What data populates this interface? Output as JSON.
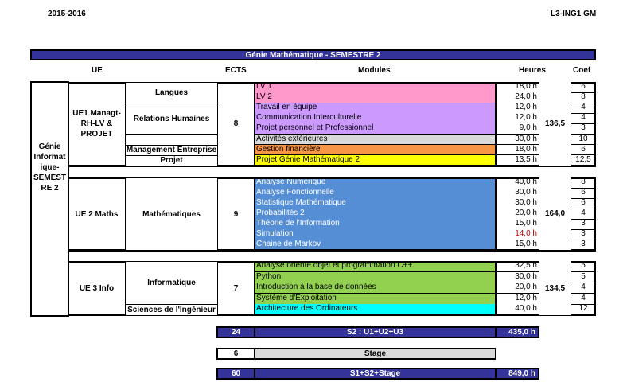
{
  "header": {
    "year": "2015-2016",
    "class": "L3-ING1 GM",
    "title": "Génie Mathématique - SEMESTRE 2"
  },
  "columns": {
    "ue": "UE",
    "ects": "ECTS",
    "modules": "Modules",
    "heures": "Heures",
    "coef": "Coef"
  },
  "program": "Génie Informat ique- SEMEST RE 2",
  "colors": {
    "pink": "#ff99cc",
    "lavender": "#cc99ff",
    "gray": "#d9d9d9",
    "orange": "#f79646",
    "yellow": "#ffff00",
    "blue": "#558ed5",
    "green": "#92d050",
    "cyan": "#00ffff",
    "navy": "#333399"
  },
  "sections": [
    {
      "ue": "UE1 Managt-RH-LV & PROJET",
      "ects": "8",
      "total": "136,5",
      "groups": [
        {
          "label": "Langues",
          "rows": 2
        },
        {
          "label": "Relations Humaines",
          "rows": 3
        },
        {
          "label": "",
          "rows": 1
        },
        {
          "label": "Management Entreprise",
          "rows": 1
        },
        {
          "label": "Projet",
          "rows": 1
        }
      ],
      "modules": [
        {
          "name": "LV 1",
          "hours": "18,0 h",
          "coef": "6",
          "color": "pink"
        },
        {
          "name": "LV 2",
          "hours": "24,0 h",
          "coef": "8",
          "color": "pink"
        },
        {
          "name": "Travail en équipe",
          "hours": "12,0 h",
          "coef": "4",
          "color": "lavender"
        },
        {
          "name": "Communication Interculturelle",
          "hours": "12,0 h",
          "coef": "4",
          "color": "lavender"
        },
        {
          "name": "Projet personnel et Professionnel",
          "hours": "9,0 h",
          "coef": "3",
          "color": "lavender"
        },
        {
          "name": "Activités extérieures",
          "hours": "30,0 h",
          "coef": "10",
          "color": "gray"
        },
        {
          "name": "Gestion financière",
          "hours": "18,0 h",
          "coef": "6",
          "color": "orange"
        },
        {
          "name": "Projet Génie Mathématique 2",
          "hours": "13,5 h",
          "coef": "12,5",
          "color": "yellow"
        }
      ]
    },
    {
      "ue": "UE 2 Maths",
      "ects": "9",
      "total": "164,0",
      "groups": [
        {
          "label": "Mathématiques",
          "rows": 7
        }
      ],
      "modules": [
        {
          "name": "Analyse Numérique",
          "hours": "40,0 h",
          "coef": "8",
          "color": "blue"
        },
        {
          "name": "Analyse Fonctionnelle",
          "hours": "30,0 h",
          "coef": "6",
          "color": "blue"
        },
        {
          "name": "Statistique Mathématique",
          "hours": "30,0 h",
          "coef": "6",
          "color": "blue"
        },
        {
          "name": "Probabilités 2",
          "hours": "20,0 h",
          "coef": "4",
          "color": "blue"
        },
        {
          "name": "Théorie de l'Information",
          "hours": "15,0 h",
          "coef": "3",
          "color": "blue"
        },
        {
          "name": "Simulation",
          "hours": "14,0 h",
          "coef": "3",
          "color": "blue",
          "hours_color": "#c00000"
        },
        {
          "name": "Chaine de Markov",
          "hours": "15,0 h",
          "coef": "3",
          "color": "blue"
        }
      ]
    },
    {
      "ue": "UE 3 Info",
      "ects": "7",
      "total": "134,5",
      "groups": [
        {
          "label": "Informatique",
          "rows": 4
        },
        {
          "label": "Sciences de l'Ingénieur",
          "rows": 1
        }
      ],
      "modules": [
        {
          "name": "Analyse orienté objet et programmation C++",
          "hours": "32,5 h",
          "coef": "5",
          "color": "green"
        },
        {
          "name": "Python",
          "hours": "30,0 h",
          "coef": "5",
          "color": "green"
        },
        {
          "name": "Introduction à la base de données",
          "hours": "20,0 h",
          "coef": "4",
          "color": "green"
        },
        {
          "name": "Système d'Exploitation",
          "hours": "12,0 h",
          "coef": "4",
          "color": "green"
        },
        {
          "name": "Architecture des Ordinateurs",
          "hours": "40,0 h",
          "coef": "12",
          "color": "cyan"
        }
      ]
    }
  ],
  "summary": [
    {
      "ects": "24",
      "label": "S2 : U1+U2+U3",
      "hours": "435,0 h"
    },
    {
      "ects": "6",
      "label": "Stage"
    },
    {
      "ects": "60",
      "label": "S1+S2+Stage",
      "hours": "849,0 h"
    }
  ]
}
